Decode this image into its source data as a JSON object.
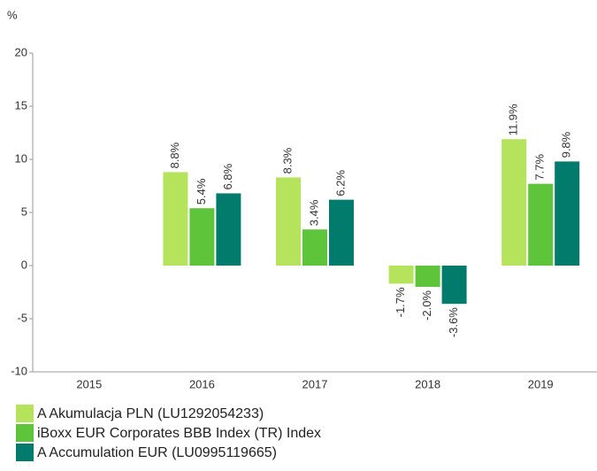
{
  "chart_data": {
    "type": "bar",
    "y_label": "%",
    "categories": [
      "2015",
      "2016",
      "2017",
      "2018",
      "2019"
    ],
    "series": [
      {
        "name": "A Akumulacja PLN (LU1292054233)",
        "color": "#b6e35c",
        "values": [
          null,
          8.8,
          8.3,
          -1.7,
          11.9
        ],
        "value_labels": [
          null,
          "8.8%",
          "8.3%",
          "-1.7%",
          "11.9%"
        ]
      },
      {
        "name": "iBoxx EUR Corporates BBB Index (TR) Index",
        "color": "#5ec43a",
        "values": [
          null,
          5.4,
          3.4,
          -2.0,
          7.7
        ],
        "value_labels": [
          null,
          "5.4%",
          "3.4%",
          "-2.0%",
          "7.7%"
        ]
      },
      {
        "name": "A Accumulation EUR (LU0995119665)",
        "color": "#007b6c",
        "values": [
          null,
          6.8,
          6.2,
          -3.6,
          9.8
        ],
        "value_labels": [
          null,
          "6.8%",
          "6.2%",
          "-3.6%",
          "9.8%"
        ]
      }
    ],
    "ylim": [
      -10,
      20
    ],
    "yticks": [
      -10,
      -5,
      0,
      5,
      10,
      15,
      20
    ],
    "grid": false,
    "legend": "bottom"
  }
}
